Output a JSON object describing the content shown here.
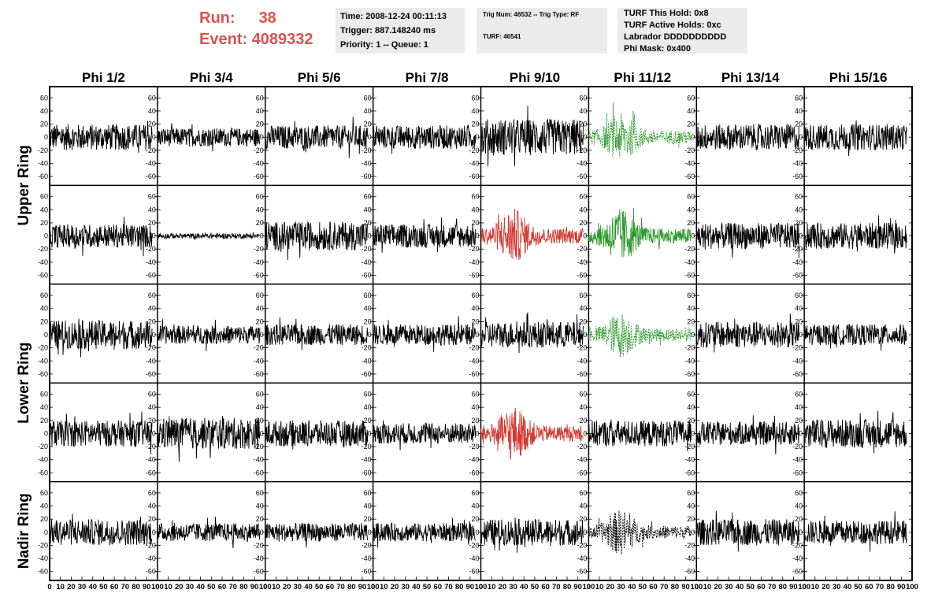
{
  "header": {
    "run_label": "Run:",
    "run_value": "38",
    "event_label": "Event:",
    "event_value": "4089332",
    "time": "Time: 2008-12-24 00:11:13",
    "trigger": "Trigger: 887.148240 ms",
    "priority": "Priority: 1 -- Queue: 1",
    "trig_num": "Trig Num: 46532 -- Trig Type: RF",
    "turf_num": "TURF: 46541",
    "turf_hold": "TURF This Hold: 0x8",
    "turf_active": "TURF Active Holds: 0xc",
    "labrador": "Labrador DDDDDDDDDD",
    "phi_mask": "Phi Mask: 0x400"
  },
  "colors": {
    "run_text": "#d9534f",
    "info_bg": "#ebebeb",
    "trace_default": "#000000",
    "trace_red": "#d23a32",
    "trace_green": "#2e9a2e"
  },
  "chart_data": {
    "type": "line",
    "columns": [
      "Phi 1/2",
      "Phi 3/4",
      "Phi 5/6",
      "Phi 7/8",
      "Phi 9/10",
      "Phi 11/12",
      "Phi 13/14",
      "Phi 15/16"
    ],
    "ring_labels": [
      {
        "label": "Upper Ring",
        "rows": [
          0,
          1
        ]
      },
      {
        "label": "Lower Ring",
        "rows": [
          2,
          3
        ]
      },
      {
        "label": "Nadir Ring",
        "rows": [
          4
        ]
      }
    ],
    "xlim": [
      0,
      100
    ],
    "ylim": [
      -70,
      70
    ],
    "x_ticks": [
      0,
      10,
      20,
      30,
      40,
      50,
      60,
      70,
      80,
      90,
      100
    ],
    "x_tick_labels": [
      "0",
      "10",
      "20",
      "30",
      "40",
      "50",
      "60",
      "70",
      "80",
      "90",
      "100"
    ],
    "x_data_range": [
      0,
      95
    ],
    "y_ticks": [
      -60,
      -40,
      -20,
      0,
      20,
      40,
      60
    ],
    "y_tick_labels": [
      "-60",
      "-40",
      "-20",
      "0",
      "20",
      "40",
      "60"
    ],
    "grid": false,
    "traces": [
      [
        {
          "style": "normal",
          "amplitude": 20,
          "color": "trace_default"
        },
        {
          "style": "normal",
          "amplitude": 14,
          "color": "trace_default"
        },
        {
          "style": "normal",
          "amplitude": 18,
          "color": "trace_default"
        },
        {
          "style": "normal",
          "amplitude": 18,
          "color": "trace_default"
        },
        {
          "style": "normal",
          "amplitude": 28,
          "color": "trace_default"
        },
        {
          "style": "pulse",
          "amplitude": 30,
          "color": "trace_green",
          "dashed": true
        },
        {
          "style": "normal",
          "amplitude": 20,
          "color": "trace_default"
        },
        {
          "style": "normal",
          "amplitude": 20,
          "color": "trace_default"
        }
      ],
      [
        {
          "style": "normal",
          "amplitude": 18,
          "color": "trace_default"
        },
        {
          "style": "quiet",
          "amplitude": 4,
          "color": "trace_default"
        },
        {
          "style": "normal",
          "amplitude": 22,
          "color": "trace_default"
        },
        {
          "style": "normal",
          "amplitude": 18,
          "color": "trace_default"
        },
        {
          "style": "pulse",
          "amplitude": 34,
          "color": "trace_red"
        },
        {
          "style": "pulse",
          "amplitude": 34,
          "color": "trace_green"
        },
        {
          "style": "normal",
          "amplitude": 20,
          "color": "trace_default"
        },
        {
          "style": "normal",
          "amplitude": 20,
          "color": "trace_default"
        }
      ],
      [
        {
          "style": "normal",
          "amplitude": 22,
          "color": "trace_default"
        },
        {
          "style": "normal",
          "amplitude": 14,
          "color": "trace_default"
        },
        {
          "style": "normal",
          "amplitude": 16,
          "color": "trace_default"
        },
        {
          "style": "normal",
          "amplitude": 16,
          "color": "trace_default"
        },
        {
          "style": "normal",
          "amplitude": 20,
          "color": "trace_default"
        },
        {
          "style": "pulse",
          "amplitude": 28,
          "color": "trace_green",
          "dashed": true
        },
        {
          "style": "normal",
          "amplitude": 20,
          "color": "trace_default"
        },
        {
          "style": "normal",
          "amplitude": 16,
          "color": "trace_default"
        }
      ],
      [
        {
          "style": "normal",
          "amplitude": 20,
          "color": "trace_default"
        },
        {
          "style": "normal",
          "amplitude": 24,
          "color": "trace_default"
        },
        {
          "style": "normal",
          "amplitude": 20,
          "color": "trace_default"
        },
        {
          "style": "normal",
          "amplitude": 16,
          "color": "trace_default"
        },
        {
          "style": "pulse",
          "amplitude": 34,
          "color": "trace_red"
        },
        {
          "style": "normal",
          "amplitude": 20,
          "color": "trace_default"
        },
        {
          "style": "normal",
          "amplitude": 18,
          "color": "trace_default"
        },
        {
          "style": "normal",
          "amplitude": 22,
          "color": "trace_default"
        }
      ],
      [
        {
          "style": "normal",
          "amplitude": 20,
          "color": "trace_default"
        },
        {
          "style": "normal",
          "amplitude": 14,
          "color": "trace_default"
        },
        {
          "style": "normal",
          "amplitude": 14,
          "color": "trace_default"
        },
        {
          "style": "normal",
          "amplitude": 14,
          "color": "trace_default"
        },
        {
          "style": "normal",
          "amplitude": 20,
          "color": "trace_default"
        },
        {
          "style": "pulse",
          "amplitude": 28,
          "color": "trace_default",
          "dashed": true
        },
        {
          "style": "normal",
          "amplitude": 20,
          "color": "trace_default"
        },
        {
          "style": "normal",
          "amplitude": 18,
          "color": "trace_default"
        }
      ]
    ]
  }
}
